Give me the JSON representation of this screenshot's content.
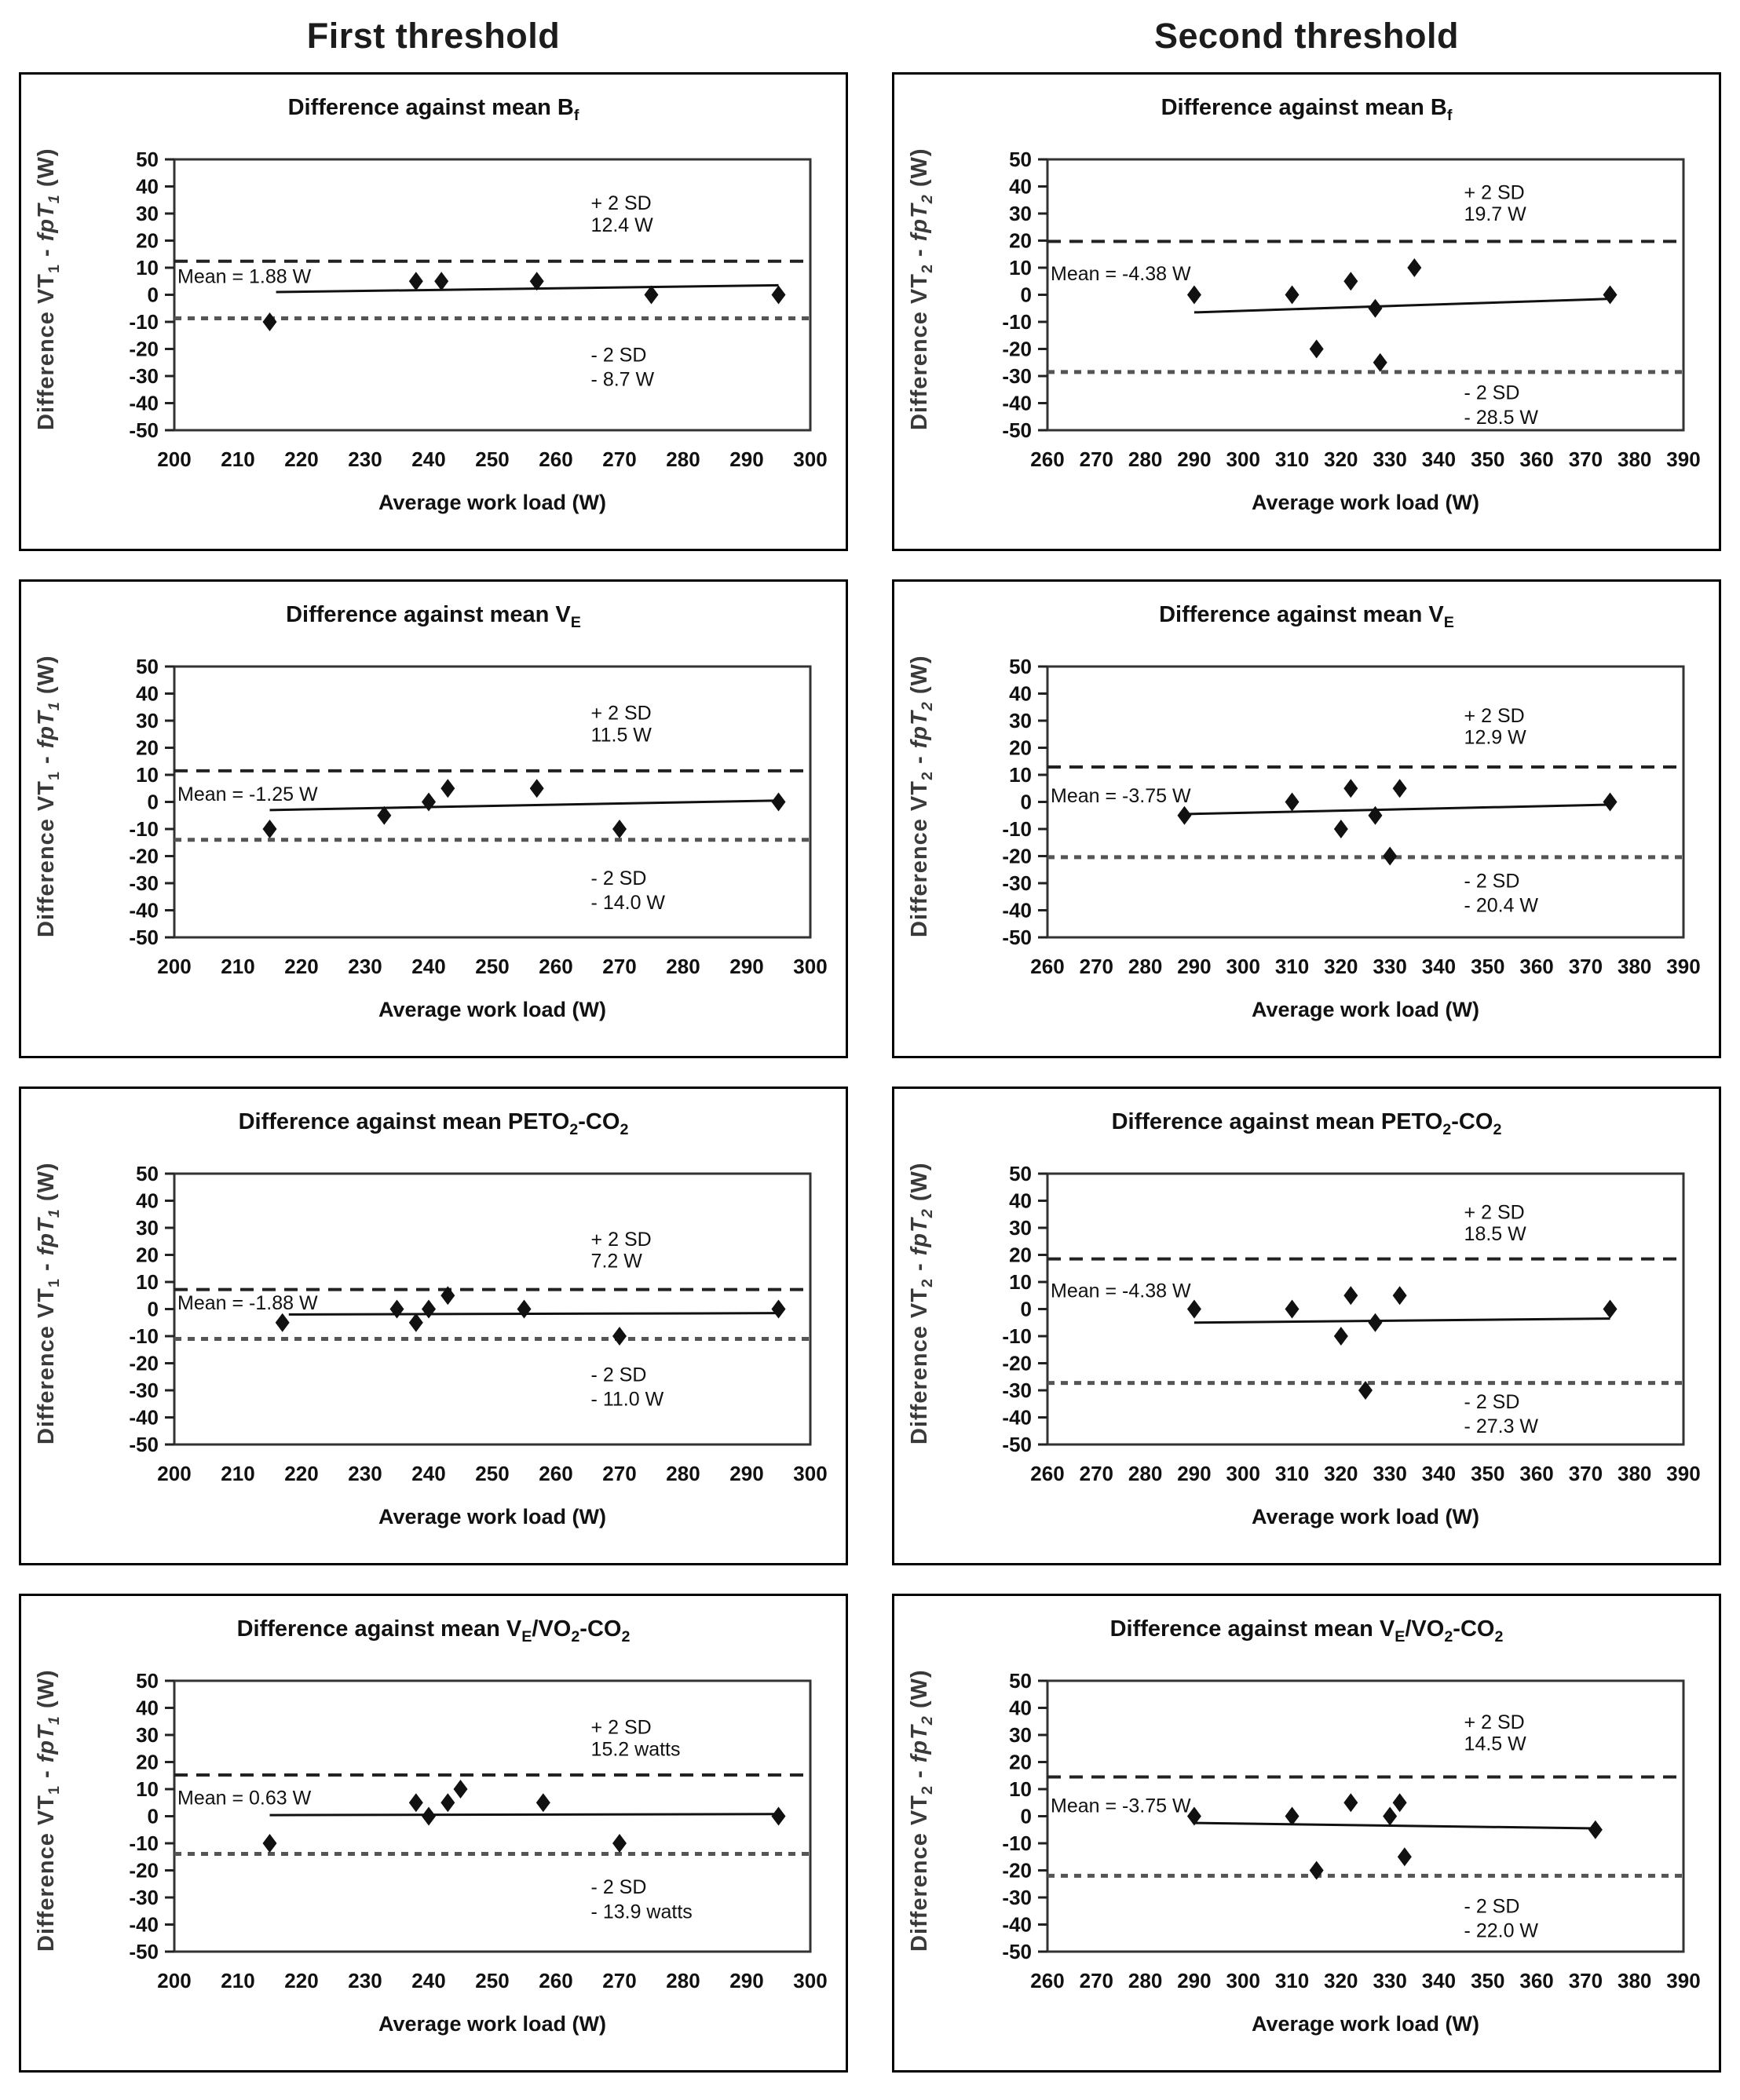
{
  "page": {
    "column_headers": [
      "First threshold",
      "Second threshold"
    ]
  },
  "chart_data": [
    {
      "id": "bf-first",
      "type": "scatter",
      "title": [
        {
          "t": "Difference against mean B"
        },
        {
          "t": "f",
          "sub": true
        }
      ],
      "ylabel": [
        {
          "t": "Difference VT"
        },
        {
          "t": "1",
          "sub": true
        },
        {
          "t": " - "
        },
        {
          "t": "fpT",
          "italic": true
        },
        {
          "t": "1",
          "sub": true,
          "italic": true
        },
        {
          "t": " (W)"
        }
      ],
      "xlabel": "Average work load (W)",
      "xlim": [
        200,
        300
      ],
      "x_ticks": [
        200,
        210,
        220,
        230,
        240,
        250,
        260,
        270,
        280,
        290,
        300
      ],
      "ylim": [
        -50,
        50
      ],
      "y_ticks": [
        50,
        40,
        30,
        20,
        10,
        0,
        -10,
        -20,
        -30,
        -40,
        -50
      ],
      "mean": {
        "label": "Mean = 1.88 W",
        "value": 1.88,
        "label_y": 7
      },
      "sd_plus": {
        "value": 12.4,
        "lines": [
          "+ 2 SD",
          "12.4 W"
        ],
        "label_ys": [
          34,
          26
        ]
      },
      "sd_minus": {
        "value": -8.7,
        "lines": [
          "- 2 SD",
          "- 8.7 W"
        ],
        "label_ys": [
          -22,
          -31
        ]
      },
      "points": [
        [
          215,
          -10
        ],
        [
          238,
          5
        ],
        [
          242,
          5
        ],
        [
          257,
          5
        ],
        [
          275,
          0
        ],
        [
          295,
          0
        ]
      ],
      "trend": [
        [
          216,
          1
        ],
        [
          295,
          3.5
        ]
      ]
    },
    {
      "id": "bf-second",
      "type": "scatter",
      "title": [
        {
          "t": "Difference against mean B"
        },
        {
          "t": "f",
          "sub": true
        }
      ],
      "ylabel": [
        {
          "t": "Difference VT"
        },
        {
          "t": "2",
          "sub": true
        },
        {
          "t": " - "
        },
        {
          "t": "fpT",
          "italic": true
        },
        {
          "t": "2",
          "sub": true,
          "italic": true
        },
        {
          "t": " (W)"
        }
      ],
      "xlabel": "Average work load (W)",
      "xlim": [
        260,
        390
      ],
      "x_ticks": [
        260,
        270,
        280,
        290,
        300,
        310,
        320,
        330,
        340,
        350,
        360,
        370,
        380,
        390
      ],
      "ylim": [
        -50,
        50
      ],
      "y_ticks": [
        50,
        40,
        30,
        20,
        10,
        0,
        -10,
        -20,
        -30,
        -40,
        -50
      ],
      "mean": {
        "label": "Mean = -4.38 W",
        "value": -4.38,
        "label_y": 8
      },
      "sd_plus": {
        "value": 19.7,
        "lines": [
          "+ 2 SD",
          "19.7 W"
        ],
        "label_ys": [
          38,
          30
        ]
      },
      "sd_minus": {
        "value": -28.5,
        "lines": [
          "- 2 SD",
          "- 28.5 W"
        ],
        "label_ys": [
          -36,
          -45
        ]
      },
      "points": [
        [
          290,
          0
        ],
        [
          310,
          0
        ],
        [
          315,
          -20
        ],
        [
          322,
          5
        ],
        [
          327,
          -5
        ],
        [
          328,
          -25
        ],
        [
          335,
          10
        ],
        [
          375,
          0
        ]
      ],
      "trend": [
        [
          290,
          -6.5
        ],
        [
          375,
          -1.5
        ]
      ]
    },
    {
      "id": "ve-first",
      "type": "scatter",
      "title": [
        {
          "t": "Difference against mean V"
        },
        {
          "t": "E",
          "sub": true
        }
      ],
      "ylabel": [
        {
          "t": "Difference VT"
        },
        {
          "t": "1",
          "sub": true
        },
        {
          "t": " - "
        },
        {
          "t": "fpT",
          "italic": true
        },
        {
          "t": "1",
          "sub": true,
          "italic": true
        },
        {
          "t": " (W)"
        }
      ],
      "xlabel": "Average work load (W)",
      "xlim": [
        200,
        300
      ],
      "x_ticks": [
        200,
        210,
        220,
        230,
        240,
        250,
        260,
        270,
        280,
        290,
        300
      ],
      "ylim": [
        -50,
        50
      ],
      "y_ticks": [
        50,
        40,
        30,
        20,
        10,
        0,
        -10,
        -20,
        -30,
        -40,
        -50
      ],
      "mean": {
        "label": "Mean = -1.25 W",
        "value": -1.25,
        "label_y": 3
      },
      "sd_plus": {
        "value": 11.5,
        "lines": [
          "+ 2 SD",
          "11.5 W"
        ],
        "label_ys": [
          33,
          25
        ]
      },
      "sd_minus": {
        "value": -14.0,
        "lines": [
          "- 2 SD",
          "- 14.0 W"
        ],
        "label_ys": [
          -28,
          -37
        ]
      },
      "points": [
        [
          215,
          -10
        ],
        [
          233,
          -5
        ],
        [
          240,
          0
        ],
        [
          243,
          5
        ],
        [
          257,
          5
        ],
        [
          270,
          -10
        ],
        [
          295,
          0
        ]
      ],
      "trend": [
        [
          215,
          -3
        ],
        [
          295,
          0.5
        ]
      ]
    },
    {
      "id": "ve-second",
      "type": "scatter",
      "title": [
        {
          "t": "Difference against mean V"
        },
        {
          "t": "E",
          "sub": true
        }
      ],
      "ylabel": [
        {
          "t": "Difference VT"
        },
        {
          "t": "2",
          "sub": true
        },
        {
          "t": " - "
        },
        {
          "t": "fpT",
          "italic": true
        },
        {
          "t": "2",
          "sub": true,
          "italic": true
        },
        {
          "t": " (W)"
        }
      ],
      "xlabel": "Average work load (W)",
      "xlim": [
        260,
        390
      ],
      "x_ticks": [
        260,
        270,
        280,
        290,
        300,
        310,
        320,
        330,
        340,
        350,
        360,
        370,
        380,
        390
      ],
      "ylim": [
        -50,
        50
      ],
      "y_ticks": [
        50,
        40,
        30,
        20,
        10,
        0,
        -10,
        -20,
        -30,
        -40,
        -50
      ],
      "mean": {
        "label": "Mean = -3.75 W",
        "value": -3.75,
        "label_y": 2.5
      },
      "sd_plus": {
        "value": 12.9,
        "lines": [
          "+ 2 SD",
          "12.9 W"
        ],
        "label_ys": [
          32,
          24
        ]
      },
      "sd_minus": {
        "value": -20.4,
        "lines": [
          "- 2 SD",
          "- 20.4 W"
        ],
        "label_ys": [
          -29,
          -38
        ]
      },
      "points": [
        [
          288,
          -5
        ],
        [
          310,
          0
        ],
        [
          320,
          -10
        ],
        [
          322,
          5
        ],
        [
          327,
          -5
        ],
        [
          330,
          -20
        ],
        [
          332,
          5
        ],
        [
          375,
          0
        ]
      ],
      "trend": [
        [
          288,
          -4.5
        ],
        [
          375,
          -1
        ]
      ]
    },
    {
      "id": "peto2-first",
      "type": "scatter",
      "title": [
        {
          "t": "Difference against mean PETO"
        },
        {
          "t": "2",
          "sub": true
        },
        {
          "t": "-CO"
        },
        {
          "t": "2",
          "sub": true
        }
      ],
      "ylabel": [
        {
          "t": "Difference VT"
        },
        {
          "t": "1",
          "sub": true
        },
        {
          "t": " - "
        },
        {
          "t": "fpT",
          "italic": true
        },
        {
          "t": "1",
          "sub": true,
          "italic": true
        },
        {
          "t": " (W)"
        }
      ],
      "xlabel": "Average work load (W)",
      "xlim": [
        200,
        300
      ],
      "x_ticks": [
        200,
        210,
        220,
        230,
        240,
        250,
        260,
        270,
        280,
        290,
        300
      ],
      "ylim": [
        -50,
        50
      ],
      "y_ticks": [
        50,
        40,
        30,
        20,
        10,
        0,
        -10,
        -20,
        -30,
        -40,
        -50
      ],
      "mean": {
        "label": "Mean = -1.88 W",
        "value": -1.88,
        "label_y": 2.5
      },
      "sd_plus": {
        "value": 7.2,
        "lines": [
          "+ 2 SD",
          "7.2 W"
        ],
        "label_ys": [
          26,
          18
        ]
      },
      "sd_minus": {
        "value": -11.0,
        "lines": [
          "- 2 SD",
          "- 11.0 W"
        ],
        "label_ys": [
          -24,
          -33
        ]
      },
      "points": [
        [
          217,
          -5
        ],
        [
          235,
          0
        ],
        [
          238,
          -5
        ],
        [
          240,
          0
        ],
        [
          243,
          5
        ],
        [
          255,
          0
        ],
        [
          270,
          -10
        ],
        [
          295,
          0
        ]
      ],
      "trend": [
        [
          218,
          -2
        ],
        [
          295,
          -1.5
        ]
      ]
    },
    {
      "id": "peto2-second",
      "type": "scatter",
      "title": [
        {
          "t": "Difference against mean PETO"
        },
        {
          "t": "2",
          "sub": true
        },
        {
          "t": "-CO"
        },
        {
          "t": "2",
          "sub": true
        }
      ],
      "ylabel": [
        {
          "t": "Difference VT"
        },
        {
          "t": "2",
          "sub": true
        },
        {
          "t": " - "
        },
        {
          "t": "fpT",
          "italic": true
        },
        {
          "t": "2",
          "sub": true,
          "italic": true
        },
        {
          "t": " (W)"
        }
      ],
      "xlabel": "Average work load (W)",
      "xlim": [
        260,
        390
      ],
      "x_ticks": [
        260,
        270,
        280,
        290,
        300,
        310,
        320,
        330,
        340,
        350,
        360,
        370,
        380,
        390
      ],
      "ylim": [
        -50,
        50
      ],
      "y_ticks": [
        50,
        40,
        30,
        20,
        10,
        0,
        -10,
        -20,
        -30,
        -40,
        -50
      ],
      "mean": {
        "label": "Mean = -4.38 W",
        "value": -4.38,
        "label_y": 7
      },
      "sd_plus": {
        "value": 18.5,
        "lines": [
          "+ 2 SD",
          "18.5 W"
        ],
        "label_ys": [
          36,
          28
        ]
      },
      "sd_minus": {
        "value": -27.3,
        "lines": [
          "- 2 SD",
          "- 27.3 W"
        ],
        "label_ys": [
          -34,
          -43
        ]
      },
      "points": [
        [
          290,
          0
        ],
        [
          310,
          0
        ],
        [
          320,
          -10
        ],
        [
          322,
          5
        ],
        [
          325,
          -30
        ],
        [
          327,
          -5
        ],
        [
          332,
          5
        ],
        [
          375,
          0
        ]
      ],
      "trend": [
        [
          290,
          -5
        ],
        [
          375,
          -3.5
        ]
      ]
    },
    {
      "id": "vevo2-first",
      "type": "scatter",
      "title": [
        {
          "t": "Difference against mean V"
        },
        {
          "t": "E",
          "sub": true
        },
        {
          "t": "/VO"
        },
        {
          "t": "2",
          "sub": true
        },
        {
          "t": "-CO"
        },
        {
          "t": "2",
          "sub": true
        }
      ],
      "ylabel": [
        {
          "t": "Difference VT"
        },
        {
          "t": "1",
          "sub": true
        },
        {
          "t": " - "
        },
        {
          "t": "fpT",
          "italic": true
        },
        {
          "t": "1",
          "sub": true,
          "italic": true
        },
        {
          "t": " (W)"
        }
      ],
      "xlabel": "Average work load (W)",
      "xlim": [
        200,
        300
      ],
      "x_ticks": [
        200,
        210,
        220,
        230,
        240,
        250,
        260,
        270,
        280,
        290,
        300
      ],
      "ylim": [
        -50,
        50
      ],
      "y_ticks": [
        50,
        40,
        30,
        20,
        10,
        0,
        -10,
        -20,
        -30,
        -40,
        -50
      ],
      "mean": {
        "label": "Mean = 0.63 W",
        "value": 0.63,
        "label_y": 7
      },
      "sd_plus": {
        "value": 15.2,
        "lines": [
          "+ 2 SD",
          "15.2 watts"
        ],
        "label_ys": [
          33,
          25
        ]
      },
      "sd_minus": {
        "value": -13.9,
        "lines": [
          "- 2 SD",
          "- 13.9 watts"
        ],
        "label_ys": [
          -26,
          -35
        ]
      },
      "points": [
        [
          215,
          -10
        ],
        [
          238,
          5
        ],
        [
          240,
          0
        ],
        [
          243,
          5
        ],
        [
          245,
          10
        ],
        [
          258,
          5
        ],
        [
          270,
          -10
        ],
        [
          295,
          0
        ]
      ],
      "trend": [
        [
          215,
          0.4
        ],
        [
          295,
          0.8
        ]
      ]
    },
    {
      "id": "vevo2-second",
      "type": "scatter",
      "title": [
        {
          "t": "Difference against mean V"
        },
        {
          "t": "E",
          "sub": true
        },
        {
          "t": "/VO"
        },
        {
          "t": "2",
          "sub": true
        },
        {
          "t": "-CO"
        },
        {
          "t": "2",
          "sub": true
        }
      ],
      "ylabel": [
        {
          "t": "Difference VT"
        },
        {
          "t": "2",
          "sub": true
        },
        {
          "t": " - "
        },
        {
          "t": "fpT",
          "italic": true
        },
        {
          "t": "2",
          "sub": true,
          "italic": true
        },
        {
          "t": " (W)"
        }
      ],
      "xlabel": "Average work load (W)",
      "xlim": [
        260,
        390
      ],
      "x_ticks": [
        260,
        270,
        280,
        290,
        300,
        310,
        320,
        330,
        340,
        350,
        360,
        370,
        380,
        390
      ],
      "ylim": [
        -50,
        50
      ],
      "y_ticks": [
        50,
        40,
        30,
        20,
        10,
        0,
        -10,
        -20,
        -30,
        -40,
        -50
      ],
      "mean": {
        "label": "Mean = -3.75 W",
        "value": -3.75,
        "label_y": 4
      },
      "sd_plus": {
        "value": 14.5,
        "lines": [
          "+ 2 SD",
          "14.5 W"
        ],
        "label_ys": [
          35,
          27
        ]
      },
      "sd_minus": {
        "value": -22.0,
        "lines": [
          "- 2 SD",
          "- 22.0 W"
        ],
        "label_ys": [
          -33,
          -42
        ]
      },
      "points": [
        [
          290,
          0
        ],
        [
          310,
          0
        ],
        [
          315,
          -20
        ],
        [
          322,
          5
        ],
        [
          330,
          0
        ],
        [
          332,
          5
        ],
        [
          333,
          -15
        ],
        [
          372,
          -5
        ]
      ],
      "trend": [
        [
          290,
          -2.5
        ],
        [
          372,
          -4.5
        ]
      ]
    }
  ]
}
